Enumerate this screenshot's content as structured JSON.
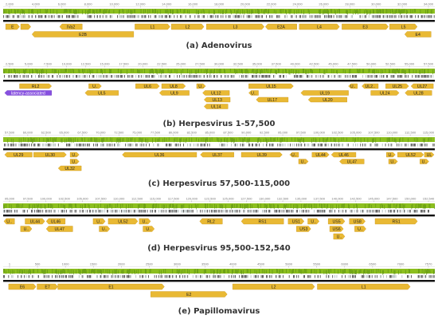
{
  "colors": {
    "coverage_green": "#8cbf1f",
    "coverage_dark": "#5a8f12",
    "feature_gold": "#e9b934",
    "feature_purple": "#8750e0",
    "track_black": "#111111",
    "ruler_red": "#e03030",
    "text": "#333333"
  },
  "panels": [
    {
      "id": "adeno",
      "caption": "(a)  Adenovirus",
      "ruler_start": 0,
      "ruler_end": 34400,
      "ruler_label_color": "#777777",
      "ticks": [
        "2,000",
        "4,000",
        "6,000",
        "8,000",
        "10,000",
        "12,000",
        "14,000",
        "16,000",
        "18,000",
        "20,000",
        "22,000",
        "24,000",
        "26,000",
        "28,000",
        "30,000",
        "32,000",
        "34,000"
      ],
      "features": [
        {
          "label": "E",
          "start": 200,
          "end": 1300,
          "row": 0,
          "dir": "fwd"
        },
        {
          "label": "",
          "start": 1400,
          "end": 2200,
          "row": 0,
          "dir": "fwd"
        },
        {
          "label": "IVa2",
          "start": 4500,
          "end": 6300,
          "row": 0,
          "dir": "rev"
        },
        {
          "label": "L1",
          "start": 10500,
          "end": 13300,
          "row": 0,
          "dir": "fwd"
        },
        {
          "label": "L2",
          "start": 13400,
          "end": 16000,
          "row": 0,
          "dir": "fwd"
        },
        {
          "label": "L3",
          "start": 16200,
          "end": 20800,
          "row": 0,
          "dir": "fwd"
        },
        {
          "label": "E2A",
          "start": 20900,
          "end": 23400,
          "row": 0,
          "dir": "rev"
        },
        {
          "label": "L4",
          "start": 23600,
          "end": 26800,
          "row": 0,
          "dir": "fwd"
        },
        {
          "label": "E3",
          "start": 27000,
          "end": 30700,
          "row": 0,
          "dir": "fwd"
        },
        {
          "label": "L5",
          "start": 30800,
          "end": 33000,
          "row": 0,
          "dir": "fwd"
        },
        {
          "label": "E2B",
          "start": 2300,
          "end": 10400,
          "row": 1,
          "dir": "rev"
        },
        {
          "label": "E4",
          "start": 32000,
          "end": 34100,
          "row": 1,
          "dir": "rev"
        }
      ]
    },
    {
      "id": "herpes1",
      "caption": "(b)  Herpesvirus  1-57,500",
      "ruler_start": 0,
      "ruler_end": 58000,
      "ruler_label_color": "#e03030",
      "ticks": [
        "2,500",
        "5,000",
        "7,500",
        "10,000",
        "12,500",
        "15,000",
        "17,500",
        "20,000",
        "22,500",
        "25,000",
        "27,500",
        "30,000",
        "32,500",
        "35,000",
        "37,500",
        "40,000",
        "42,500",
        "45,000",
        "47,500",
        "50,000",
        "52,500",
        "55,000",
        "57,500"
      ],
      "features": [
        {
          "label": "RL2",
          "start": 2200,
          "end": 6500,
          "row": 0,
          "dir": "fwd"
        },
        {
          "label": "U..",
          "start": 11500,
          "end": 13200,
          "row": 0,
          "dir": "fwd"
        },
        {
          "label": "UL6",
          "start": 17800,
          "end": 21000,
          "row": 0,
          "dir": "fwd"
        },
        {
          "label": "UL8",
          "start": 21300,
          "end": 24500,
          "row": 0,
          "dir": "fwd"
        },
        {
          "label": "U..",
          "start": 26000,
          "end": 27200,
          "row": 0,
          "dir": "fwd"
        },
        {
          "label": "UL15",
          "start": 33000,
          "end": 39000,
          "row": 0,
          "dir": "fwd"
        },
        {
          "label": "U..",
          "start": 46400,
          "end": 47600,
          "row": 0,
          "dir": "rev"
        },
        {
          "label": "UL2..",
          "start": 48200,
          "end": 50400,
          "row": 0,
          "dir": "rev"
        },
        {
          "label": "UL25",
          "start": 51400,
          "end": 54500,
          "row": 0,
          "dir": "fwd"
        },
        {
          "label": "UL27",
          "start": 54800,
          "end": 57800,
          "row": 0,
          "dir": "rev"
        },
        {
          "label": "latency-associated",
          "start": 200,
          "end": 6500,
          "row": 1,
          "dir": "rev",
          "purple": true
        },
        {
          "label": "UL5",
          "start": 11000,
          "end": 15500,
          "row": 1,
          "dir": "rev"
        },
        {
          "label": "UL9",
          "start": 21000,
          "end": 25000,
          "row": 1,
          "dir": "rev"
        },
        {
          "label": "UL12",
          "start": 26800,
          "end": 30400,
          "row": 1,
          "dir": "rev"
        },
        {
          "label": "U..",
          "start": 33000,
          "end": 34300,
          "row": 1,
          "dir": "rev"
        },
        {
          "label": "UL19",
          "start": 40000,
          "end": 46400,
          "row": 1,
          "dir": "rev"
        },
        {
          "label": "UL24",
          "start": 49400,
          "end": 53200,
          "row": 1,
          "dir": "fwd"
        },
        {
          "label": "UL28",
          "start": 54000,
          "end": 57600,
          "row": 1,
          "dir": "rev"
        },
        {
          "label": "UL13",
          "start": 27000,
          "end": 30500,
          "row": 2,
          "dir": "rev"
        },
        {
          "label": "UL17",
          "start": 34000,
          "end": 38300,
          "row": 2,
          "dir": "rev"
        },
        {
          "label": "UL20",
          "start": 41000,
          "end": 46200,
          "row": 2,
          "dir": "rev"
        },
        {
          "label": "UL14",
          "start": 27000,
          "end": 30200,
          "row": 3,
          "dir": "rev"
        }
      ]
    },
    {
      "id": "herpes2",
      "caption": "(c)  Herpesvirus 57,500-115,000",
      "ruler_start": 57500,
      "ruler_end": 115500,
      "ruler_label_color": "#777777",
      "ticks": [
        "57,500",
        "60,000",
        "62,500",
        "65,000",
        "67,500",
        "70,000",
        "72,500",
        "75,000",
        "77,500",
        "80,000",
        "82,500",
        "85,000",
        "87,500",
        "90,000",
        "92,500",
        "95,000",
        "97,500",
        "100,000",
        "102,500",
        "105,000",
        "107,500",
        "110,000",
        "112,500",
        "115,000"
      ],
      "features": [
        {
          "label": "UL29",
          "start": 57700,
          "end": 61400,
          "row": 0,
          "dir": "rev"
        },
        {
          "label": "UL30",
          "start": 61600,
          "end": 66000,
          "row": 0,
          "dir": "fwd"
        },
        {
          "label": "U..",
          "start": 66500,
          "end": 67700,
          "row": 0,
          "dir": "fwd"
        },
        {
          "label": "UL36",
          "start": 73500,
          "end": 83500,
          "row": 0,
          "dir": "rev"
        },
        {
          "label": "UL37",
          "start": 84000,
          "end": 88500,
          "row": 0,
          "dir": "rev"
        },
        {
          "label": "UL39",
          "start": 89500,
          "end": 95000,
          "row": 0,
          "dir": "fwd"
        },
        {
          "label": "U..",
          "start": 96000,
          "end": 97200,
          "row": 0,
          "dir": "rev"
        },
        {
          "label": "UL44",
          "start": 99000,
          "end": 101300,
          "row": 0,
          "dir": "fwd"
        },
        {
          "label": "UL46",
          "start": 101600,
          "end": 104900,
          "row": 0,
          "dir": "rev"
        },
        {
          "label": "U..",
          "start": 109000,
          "end": 110200,
          "row": 0,
          "dir": "fwd"
        },
        {
          "label": "UL52",
          "start": 110500,
          "end": 114000,
          "row": 0,
          "dir": "fwd"
        },
        {
          "label": "UL",
          "start": 114100,
          "end": 115400,
          "row": 0,
          "dir": "fwd"
        },
        {
          "label": "U..",
          "start": 66500,
          "end": 67700,
          "row": 1,
          "dir": "fwd"
        },
        {
          "label": "U..",
          "start": 97200,
          "end": 98500,
          "row": 1,
          "dir": "fwd"
        },
        {
          "label": "UL47",
          "start": 102700,
          "end": 106000,
          "row": 1,
          "dir": "rev"
        },
        {
          "label": "U..",
          "start": 109300,
          "end": 110500,
          "row": 1,
          "dir": "fwd"
        },
        {
          "label": "U..",
          "start": 113500,
          "end": 114700,
          "row": 1,
          "dir": "fwd"
        },
        {
          "label": "UL32",
          "start": 64900,
          "end": 68000,
          "row": 2,
          "dir": "rev"
        }
      ]
    },
    {
      "id": "herpes3",
      "caption": "(d)  Herpesvirus 95,500-152,540",
      "ruler_start": 95500,
      "ruler_end": 152600,
      "ruler_label_color": "#777777",
      "ticks": [
        "95,000",
        "97,500",
        "100,000",
        "102,500",
        "105,000",
        "107,500",
        "110,000",
        "112,500",
        "115,000",
        "117,500",
        "120,000",
        "122,500",
        "125,000",
        "127,500",
        "130,000",
        "132,500",
        "135,000",
        "137,500",
        "140,000",
        "142,500",
        "145,000",
        "147,500",
        "150,000",
        "152,540"
      ],
      "features": [
        {
          "label": "U..",
          "start": 95600,
          "end": 97000,
          "row": 0,
          "dir": "rev"
        },
        {
          "label": "UL44",
          "start": 98400,
          "end": 101000,
          "row": 0,
          "dir": "fwd"
        },
        {
          "label": "UL46",
          "start": 101200,
          "end": 103700,
          "row": 0,
          "dir": "rev"
        },
        {
          "label": "U..",
          "start": 107400,
          "end": 109000,
          "row": 0,
          "dir": "fwd"
        },
        {
          "label": "UL52",
          "start": 109400,
          "end": 113300,
          "row": 0,
          "dir": "fwd"
        },
        {
          "label": "U..",
          "start": 113500,
          "end": 115000,
          "row": 0,
          "dir": "fwd"
        },
        {
          "label": "RL2",
          "start": 121500,
          "end": 124500,
          "row": 0,
          "dir": "rev"
        },
        {
          "label": "RS1",
          "start": 127000,
          "end": 132600,
          "row": 0,
          "dir": "rev"
        },
        {
          "label": "US1",
          "start": 133200,
          "end": 135300,
          "row": 0,
          "dir": "fwd"
        },
        {
          "label": "U..",
          "start": 135800,
          "end": 137300,
          "row": 0,
          "dir": "fwd"
        },
        {
          "label": "US5",
          "start": 138500,
          "end": 140700,
          "row": 0,
          "dir": "fwd"
        },
        {
          "label": "US8",
          "start": 141300,
          "end": 143400,
          "row": 0,
          "dir": "fwd"
        },
        {
          "label": "RS1",
          "start": 144700,
          "end": 150300,
          "row": 0,
          "dir": "fwd"
        },
        {
          "label": "U..",
          "start": 97800,
          "end": 99300,
          "row": 1,
          "dir": "fwd"
        },
        {
          "label": "UL47",
          "start": 101200,
          "end": 104700,
          "row": 1,
          "dir": "rev"
        },
        {
          "label": "U..",
          "start": 108200,
          "end": 109600,
          "row": 1,
          "dir": "fwd"
        },
        {
          "label": "U..",
          "start": 114000,
          "end": 115500,
          "row": 1,
          "dir": "fwd"
        },
        {
          "label": "US3",
          "start": 134300,
          "end": 136200,
          "row": 1,
          "dir": "fwd"
        },
        {
          "label": "US6",
          "start": 138700,
          "end": 140500,
          "row": 1,
          "dir": "fwd"
        },
        {
          "label": "U..",
          "start": 142000,
          "end": 143500,
          "row": 1,
          "dir": "fwd"
        },
        {
          "label": "U..",
          "start": 139200,
          "end": 140700,
          "row": 2,
          "dir": "fwd"
        }
      ]
    },
    {
      "id": "papilloma",
      "caption": "(e)  Papillomavirus",
      "ruler_start": 0,
      "ruler_end": 7900,
      "ruler_label_color": "#777777",
      "ticks": [
        "1",
        "500",
        "1000",
        "1500",
        "2000",
        "2500",
        "3000",
        "3500",
        "4000",
        "4500",
        "5000",
        "5500",
        "6000",
        "6500",
        "7000",
        "7570"
      ],
      "features": [
        {
          "label": "E6",
          "start": 100,
          "end": 600,
          "row": 0,
          "dir": "fwd"
        },
        {
          "label": "E7",
          "start": 620,
          "end": 1000,
          "row": 0,
          "dir": "fwd"
        },
        {
          "label": "E1",
          "start": 1000,
          "end": 2950,
          "row": 0,
          "dir": "fwd"
        },
        {
          "label": "L2",
          "start": 4200,
          "end": 5700,
          "row": 0,
          "dir": "fwd"
        },
        {
          "label": "L1",
          "start": 5750,
          "end": 7450,
          "row": 0,
          "dir": "fwd"
        },
        {
          "label": "E2",
          "start": 2700,
          "end": 4100,
          "row": 1,
          "dir": "fwd"
        }
      ]
    }
  ]
}
